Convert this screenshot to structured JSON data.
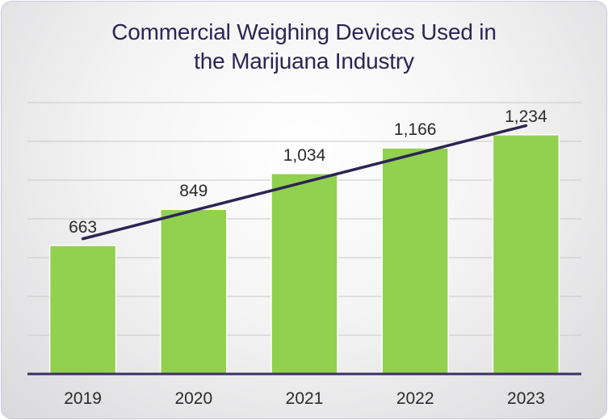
{
  "chart_data": {
    "type": "bar",
    "title": "Commercial Weighing Devices Used in the Marijuana Industry",
    "title_lines": [
      "Commercial Weighing Devices Used in",
      "the Marijuana Industry"
    ],
    "categories": [
      "2019",
      "2020",
      "2021",
      "2022",
      "2023"
    ],
    "values": [
      663,
      849,
      1034,
      1166,
      1234
    ],
    "value_labels": [
      "663",
      "849",
      "1,034",
      "1,166",
      "1,234"
    ],
    "ylim": [
      0,
      1400
    ],
    "grid": true,
    "trendline": true,
    "legend": "none",
    "xlabel": "",
    "ylabel": ""
  },
  "colors": {
    "bar": "#92d050",
    "trendline": "#2b2552",
    "axis": "#3b3163",
    "grid": "#c8c8c8",
    "title": "#2b2552"
  }
}
